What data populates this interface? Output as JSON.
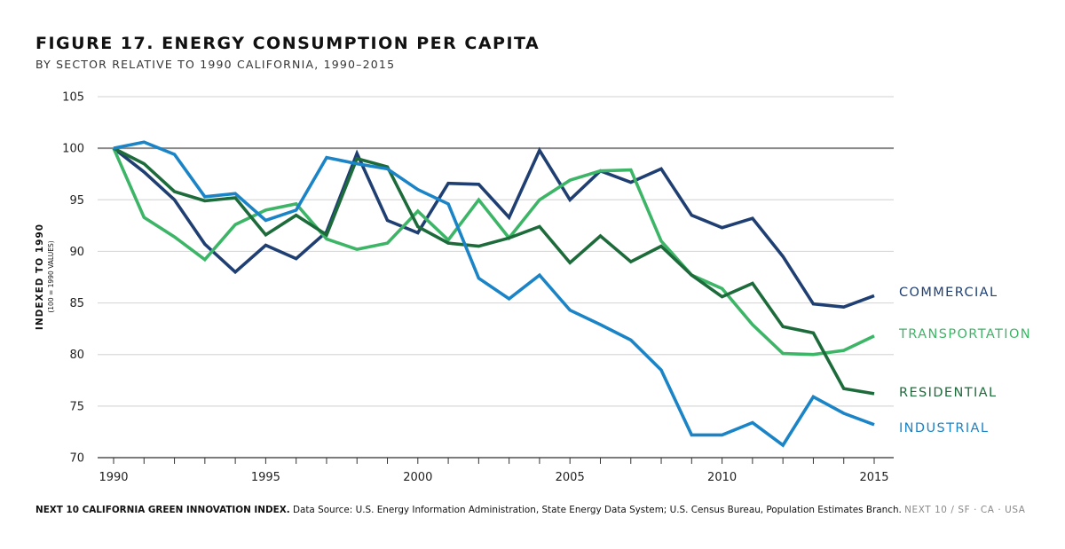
{
  "title": "FIGURE 17. ENERGY CONSUMPTION PER CAPITA",
  "subtitle": "BY SECTOR RELATIVE TO 1990 CALIFORNIA, 1990–2015",
  "footer": {
    "bold": "NEXT 10 CALIFORNIA GREEN INNOVATION INDEX.",
    "source": "Data Source: U.S. Energy Information Administration, State Energy Data System; U.S. Census Bureau, Population Estimates Branch.",
    "brand": "NEXT 10 / SF · CA · USA"
  },
  "chart_data": {
    "type": "line",
    "ylabel": "INDEXED TO 1990",
    "ylabel_sub": "(100 = 1990 VALUES)",
    "ylim": [
      70,
      105
    ],
    "yticks": [
      70,
      75,
      80,
      85,
      90,
      95,
      100,
      105
    ],
    "xlim": [
      1990,
      2015
    ],
    "xticks": [
      1990,
      1995,
      2000,
      2005,
      2010,
      2015
    ],
    "reference_line": 100,
    "grid": true,
    "legend": "direct labels at right end of lines",
    "x": [
      1990,
      1991,
      1992,
      1993,
      1994,
      1995,
      1996,
      1997,
      1998,
      1999,
      2000,
      2001,
      2002,
      2003,
      2004,
      2005,
      2006,
      2007,
      2008,
      2009,
      2010,
      2011,
      2012,
      2013,
      2014,
      2015
    ],
    "series": [
      {
        "name": "COMMERCIAL",
        "color": "#1f3f73",
        "values": [
          100,
          97.7,
          95,
          90.7,
          88,
          90.6,
          89.3,
          91.9,
          99.5,
          93,
          91.8,
          96.6,
          96.5,
          93.3,
          99.8,
          95,
          97.8,
          96.7,
          98,
          93.5,
          92.3,
          93.2,
          89.5,
          84.9,
          84.6,
          85.7
        ]
      },
      {
        "name": "TRANSPORTATION",
        "color": "#3db567",
        "values": [
          100,
          93.3,
          91.4,
          89.2,
          92.6,
          94,
          94.6,
          91.2,
          90.2,
          90.8,
          93.9,
          91.1,
          95,
          91.3,
          95,
          96.9,
          97.8,
          97.9,
          91,
          87.7,
          86.4,
          82.9,
          80.1,
          80,
          80.4,
          81.8
        ]
      },
      {
        "name": "RESIDENTIAL",
        "color": "#1d6b3b",
        "values": [
          100,
          98.5,
          95.8,
          94.9,
          95.2,
          91.6,
          93.5,
          91.6,
          99,
          98.2,
          92.4,
          90.8,
          90.5,
          91.3,
          92.4,
          88.9,
          91.5,
          89,
          90.5,
          87.7,
          85.6,
          86.9,
          82.7,
          82.1,
          76.7,
          76.2
        ]
      },
      {
        "name": "INDUSTRIAL",
        "color": "#1a84c7",
        "values": [
          100,
          100.6,
          99.4,
          95.3,
          95.6,
          93,
          94,
          99.1,
          98.5,
          98,
          96,
          94.6,
          87.4,
          85.4,
          87.7,
          84.3,
          82.9,
          81.4,
          78.5,
          72.2,
          72.2,
          73.4,
          71.2,
          75.9,
          74.3,
          73.2
        ]
      }
    ]
  }
}
